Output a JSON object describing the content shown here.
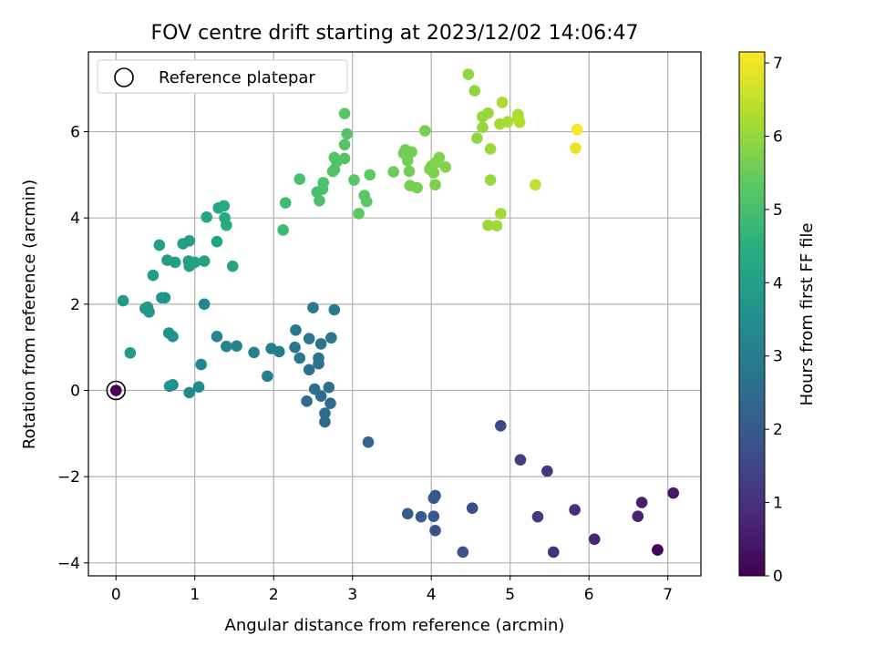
{
  "chart_data": {
    "type": "scatter",
    "title": "FOV centre drift starting at 2023/12/02 14:06:47",
    "xlabel": "Angular distance from reference (arcmin)",
    "ylabel": "Rotation from reference (arcmin)",
    "xlim": [
      -0.35,
      7.42
    ],
    "ylim": [
      -4.3,
      7.85
    ],
    "xticks": [
      0,
      1,
      2,
      3,
      4,
      5,
      6,
      7
    ],
    "yticks": [
      -4,
      -2,
      0,
      2,
      4,
      6
    ],
    "grid": true,
    "legend": {
      "placement": "top-left",
      "entries": [
        "Reference platepar"
      ]
    },
    "colorbar": {
      "label": "Hours from first FF file",
      "min": 0,
      "max": 7.15,
      "ticks": [
        0,
        1,
        2,
        3,
        4,
        5,
        6,
        7
      ],
      "colormap": "viridis"
    },
    "reference_point": {
      "x": 0,
      "y": 0,
      "hours": 0
    },
    "points": [
      [
        6.87,
        -3.7,
        0.05
      ],
      [
        6.87,
        -3.7,
        0.1
      ],
      [
        7.07,
        -2.38,
        0.5
      ],
      [
        6.67,
        -2.6,
        0.6
      ],
      [
        6.62,
        -2.92,
        0.7
      ],
      [
        6.07,
        -3.45,
        0.8
      ],
      [
        5.82,
        -2.77,
        0.9
      ],
      [
        5.55,
        -3.75,
        1.0
      ],
      [
        5.47,
        -1.87,
        1.1
      ],
      [
        5.35,
        -2.93,
        1.2
      ],
      [
        5.13,
        -1.61,
        1.3
      ],
      [
        4.88,
        -0.82,
        1.6
      ],
      [
        4.52,
        -2.73,
        1.7
      ],
      [
        4.4,
        -3.75,
        1.75
      ],
      [
        4.05,
        -3.25,
        1.8
      ],
      [
        4.05,
        -2.44,
        1.9
      ],
      [
        4.03,
        -2.5,
        1.95
      ],
      [
        4.03,
        -2.92,
        2.0
      ],
      [
        3.87,
        -2.93,
        2.05
      ],
      [
        3.7,
        -2.86,
        2.1
      ],
      [
        3.2,
        -1.2,
        2.3
      ],
      [
        2.65,
        -0.73,
        2.4
      ],
      [
        2.65,
        -0.53,
        2.45
      ],
      [
        2.72,
        -0.3,
        2.5
      ],
      [
        2.6,
        -0.13,
        2.5
      ],
      [
        2.42,
        -0.25,
        2.55
      ],
      [
        2.52,
        0.03,
        2.6
      ],
      [
        2.7,
        0.07,
        2.6
      ],
      [
        2.57,
        0.62,
        2.65
      ],
      [
        2.45,
        0.48,
        2.7
      ],
      [
        2.57,
        0.75,
        2.7
      ],
      [
        2.6,
        1.08,
        2.75
      ],
      [
        2.73,
        1.22,
        2.8
      ],
      [
        2.45,
        1.2,
        2.8
      ],
      [
        2.33,
        0.75,
        2.85
      ],
      [
        2.27,
        1.0,
        2.85
      ],
      [
        2.28,
        1.4,
        2.9
      ],
      [
        2.5,
        1.92,
        2.9
      ],
      [
        2.77,
        1.87,
        2.95
      ],
      [
        2.07,
        0.9,
        3.0
      ],
      [
        1.97,
        0.97,
        3.0
      ],
      [
        1.92,
        0.33,
        3.05
      ],
      [
        1.75,
        0.88,
        3.1
      ],
      [
        1.53,
        1.03,
        3.15
      ],
      [
        1.4,
        1.02,
        3.2
      ],
      [
        1.28,
        1.25,
        3.25
      ],
      [
        1.12,
        2.0,
        3.3
      ],
      [
        1.08,
        0.6,
        3.35
      ],
      [
        1.05,
        0.08,
        3.4
      ],
      [
        0.93,
        -0.05,
        3.45
      ],
      [
        0.72,
        0.13,
        3.55
      ],
      [
        0.68,
        0.1,
        3.6
      ],
      [
        0.67,
        1.33,
        3.6
      ],
      [
        0.72,
        1.25,
        3.65
      ],
      [
        0.62,
        2.15,
        3.7
      ],
      [
        0.58,
        2.15,
        3.7
      ],
      [
        0.42,
        1.82,
        3.75
      ],
      [
        0.37,
        1.9,
        3.8
      ],
      [
        0.4,
        1.93,
        3.8
      ],
      [
        0.18,
        0.87,
        3.85
      ],
      [
        0.09,
        2.08,
        3.85
      ],
      [
        0.47,
        2.67,
        3.9
      ],
      [
        0.65,
        3.02,
        3.9
      ],
      [
        0.55,
        3.37,
        3.95
      ],
      [
        0.75,
        2.97,
        3.95
      ],
      [
        0.85,
        3.4,
        4.0
      ],
      [
        0.93,
        3.47,
        4.0
      ],
      [
        0.93,
        2.88,
        4.0
      ],
      [
        0.92,
        3.0,
        4.05
      ],
      [
        1.0,
        2.97,
        4.05
      ],
      [
        1.12,
        3.0,
        4.1
      ],
      [
        1.28,
        3.45,
        4.1
      ],
      [
        1.48,
        2.88,
        4.15
      ],
      [
        1.15,
        4.02,
        4.2
      ],
      [
        1.3,
        4.23,
        4.25
      ],
      [
        1.37,
        4.28,
        4.3
      ],
      [
        1.38,
        4.0,
        4.3
      ],
      [
        1.4,
        3.83,
        4.35
      ],
      [
        2.12,
        3.72,
        4.85
      ],
      [
        2.15,
        4.35,
        4.9
      ],
      [
        2.33,
        4.9,
        5.0
      ],
      [
        2.55,
        4.6,
        5.0
      ],
      [
        2.58,
        4.4,
        5.05
      ],
      [
        2.62,
        4.67,
        5.05
      ],
      [
        2.63,
        4.82,
        5.1
      ],
      [
        2.75,
        5.08,
        5.1
      ],
      [
        2.77,
        5.12,
        5.15
      ],
      [
        2.8,
        5.3,
        5.15
      ],
      [
        2.77,
        5.4,
        5.15
      ],
      [
        2.9,
        5.7,
        5.2
      ],
      [
        2.9,
        5.38,
        5.2
      ],
      [
        2.93,
        5.95,
        5.2
      ],
      [
        2.9,
        6.42,
        5.25
      ],
      [
        3.02,
        4.88,
        5.25
      ],
      [
        3.08,
        4.1,
        5.3
      ],
      [
        3.15,
        4.52,
        5.3
      ],
      [
        3.18,
        4.38,
        5.3
      ],
      [
        3.22,
        5.0,
        5.35
      ],
      [
        3.52,
        5.07,
        5.5
      ],
      [
        3.65,
        5.5,
        5.55
      ],
      [
        3.67,
        5.58,
        5.55
      ],
      [
        3.7,
        5.33,
        5.6
      ],
      [
        3.72,
        5.08,
        5.6
      ],
      [
        3.75,
        5.53,
        5.6
      ],
      [
        3.73,
        4.75,
        5.6
      ],
      [
        3.82,
        4.7,
        5.65
      ],
      [
        3.92,
        6.02,
        5.65
      ],
      [
        3.98,
        5.13,
        5.7
      ],
      [
        4.0,
        5.2,
        5.7
      ],
      [
        4.05,
        4.77,
        5.7
      ],
      [
        4.03,
        5.05,
        5.7
      ],
      [
        4.05,
        5.28,
        5.75
      ],
      [
        4.1,
        5.4,
        5.75
      ],
      [
        4.08,
        5.3,
        5.75
      ],
      [
        4.18,
        5.18,
        5.8
      ],
      [
        4.47,
        7.33,
        5.9
      ],
      [
        4.55,
        6.95,
        5.95
      ],
      [
        4.58,
        5.85,
        5.95
      ],
      [
        4.65,
        6.1,
        6.0
      ],
      [
        4.65,
        6.35,
        6.0
      ],
      [
        4.72,
        6.43,
        6.0
      ],
      [
        4.75,
        5.6,
        6.05
      ],
      [
        4.75,
        4.88,
        6.05
      ],
      [
        4.72,
        3.83,
        6.1
      ],
      [
        4.83,
        3.82,
        6.1
      ],
      [
        4.88,
        4.1,
        6.15
      ],
      [
        4.87,
        6.18,
        6.15
      ],
      [
        4.9,
        6.68,
        6.2
      ],
      [
        4.97,
        6.23,
        6.2
      ],
      [
        5.1,
        6.4,
        6.25
      ],
      [
        5.1,
        6.33,
        6.25
      ],
      [
        5.12,
        6.22,
        6.3
      ],
      [
        5.32,
        4.77,
        6.5
      ],
      [
        5.83,
        5.62,
        6.9
      ],
      [
        5.85,
        6.05,
        7.1
      ]
    ]
  }
}
